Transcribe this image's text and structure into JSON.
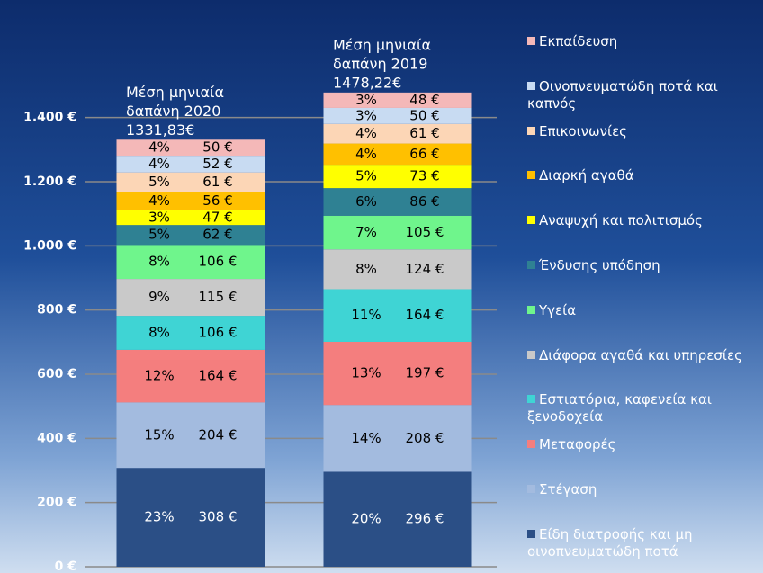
{
  "chart_data": {
    "type": "stacked_bar",
    "categories": [
      [
        "Μέση μηνιαία",
        "δαπάνη 2020",
        "1331,83€"
      ],
      [
        "Μέση μηνιαία",
        "δαπάνη 2019",
        "1478,22€"
      ]
    ],
    "ylim": [
      0,
      1500
    ],
    "yticks": [
      {
        "value": 0,
        "label": "0 €"
      },
      {
        "value": 200,
        "label": "200 €"
      },
      {
        "value": 400,
        "label": "400 €"
      },
      {
        "value": 600,
        "label": "600 €"
      },
      {
        "value": 800,
        "label": "800 €"
      },
      {
        "value": 1000,
        "label": "1.000 €"
      },
      {
        "value": 1200,
        "label": "1.200 €"
      },
      {
        "value": 1400,
        "label": "1.400 €"
      }
    ],
    "grid": true,
    "series": [
      {
        "name": "Είδη διατροφής και μη οινοπνευματώδη ποτά",
        "color": "#2b4f86",
        "values": [
          308,
          296
        ],
        "value_labels": [
          "308 €",
          "296 €"
        ],
        "percent_labels": [
          "23%",
          "20%"
        ]
      },
      {
        "name": "Στέγαση",
        "color": "#a3bbdf",
        "values": [
          204,
          208
        ],
        "value_labels": [
          "204 €",
          "208 €"
        ],
        "percent_labels": [
          "15%",
          "14%"
        ]
      },
      {
        "name": "Μεταφορές",
        "color": "#f47e7e",
        "values": [
          164,
          197
        ],
        "value_labels": [
          "164 €",
          "197 €"
        ],
        "percent_labels": [
          "12%",
          "13%"
        ]
      },
      {
        "name": "Εστιατόρια, καφενεία και ξενοδοχεία",
        "color": "#3fd4d4",
        "values": [
          106,
          164
        ],
        "value_labels": [
          "106 €",
          "164 €"
        ],
        "percent_labels": [
          "8%",
          "11%"
        ]
      },
      {
        "name": "Διάφορα αγαθά και υπηρεσίες",
        "color": "#c9c9c9",
        "values": [
          115,
          124
        ],
        "value_labels": [
          "115 €",
          "124 €"
        ],
        "percent_labels": [
          "9%",
          "8%"
        ]
      },
      {
        "name": "Υγεία",
        "color": "#6ff58c",
        "values": [
          106,
          105
        ],
        "value_labels": [
          "106 €",
          "105 €"
        ],
        "percent_labels": [
          "8%",
          "7%"
        ]
      },
      {
        "name": "Ένδυσης υπόδηση",
        "color": "#2f8193",
        "values": [
          62,
          86
        ],
        "value_labels": [
          "62 €",
          "86 €"
        ],
        "percent_labels": [
          "5%",
          "6%"
        ]
      },
      {
        "name": "Αναψυχή και πολιτισμός",
        "color": "#ffff00",
        "values": [
          47,
          73
        ],
        "value_labels": [
          "47 €",
          "73 €"
        ],
        "percent_labels": [
          "3%",
          "5%"
        ]
      },
      {
        "name": "Διαρκή αγαθά",
        "color": "#ffc000",
        "values": [
          56,
          66
        ],
        "value_labels": [
          "56 €",
          "66 €"
        ],
        "percent_labels": [
          "4%",
          "4%"
        ]
      },
      {
        "name": "Επικοινωνίες",
        "color": "#fcd6b6",
        "values": [
          61,
          61
        ],
        "value_labels": [
          "61 €",
          "61 €"
        ],
        "percent_labels": [
          "5%",
          "4%"
        ]
      },
      {
        "name": "Οινοπνευματώδη ποτά και καπνός",
        "color": "#c8dbf2",
        "values": [
          52,
          50
        ],
        "value_labels": [
          "52 €",
          "50 €"
        ],
        "percent_labels": [
          "4%",
          "3%"
        ]
      },
      {
        "name": "Εκπαίδευση",
        "color": "#f4b8b8",
        "values": [
          50,
          48
        ],
        "value_labels": [
          "50 €",
          "48 €"
        ],
        "percent_labels": [
          "4%",
          "3%"
        ]
      }
    ]
  }
}
